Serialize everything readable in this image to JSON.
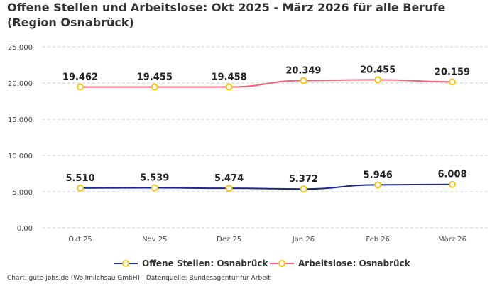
{
  "title": "Offene Stellen und Arbeitslose: Okt 2025 - März 2026 für alle Berufe (Region Osnabrück)",
  "footer": "Chart: gute-jobs.de (Wollmilchsau GmbH) | Datenquelle: Bundesagentur für Arbeit",
  "chart_data": {
    "type": "line",
    "title": "Offene Stellen und Arbeitslose: Okt 2025 - März 2026 für alle Berufe (Region Osnabrück)",
    "categories": [
      "Okt 25",
      "Nov 25",
      "Dez 25",
      "Jan 26",
      "Feb 26",
      "März 26"
    ],
    "ylim": [
      0,
      25000
    ],
    "yticks": [
      0,
      5000,
      10000,
      15000,
      20000,
      25000
    ],
    "ytick_labels": [
      "0,00",
      "5.000",
      "10.000",
      "15.000",
      "20.000",
      "25.000"
    ],
    "grid": true,
    "legend": "bottom",
    "series": [
      {
        "name": "Offene Stellen: Osnabrück",
        "color": "#1a2a8a",
        "values": [
          5510,
          5539,
          5474,
          5372,
          5946,
          6008
        ],
        "labels": [
          "5.510",
          "5.539",
          "5.474",
          "5.372",
          "5.946",
          "6.008"
        ]
      },
      {
        "name": "Arbeitslose: Osnabrück",
        "color": "#f7607a",
        "values": [
          19462,
          19455,
          19458,
          20349,
          20455,
          20159
        ],
        "labels": [
          "19.462",
          "19.455",
          "19.458",
          "20.349",
          "20.455",
          "20.159"
        ]
      }
    ],
    "marker_color": "#f5c518"
  }
}
